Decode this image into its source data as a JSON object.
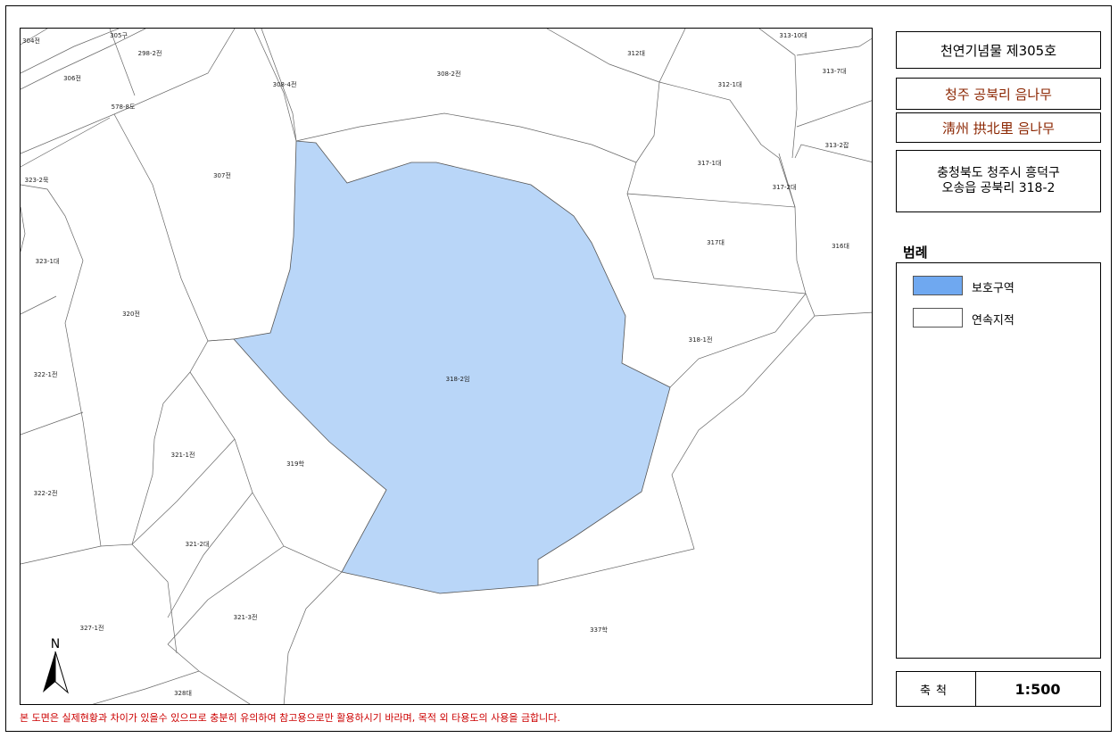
{
  "title_boxes": {
    "monument": "천연기념물 제305호",
    "name_korean": "청주 공북리 음나무",
    "name_hanja": "淸州 拱北里 음나무",
    "address_line1": "충청북도 청주시 흥덕구",
    "address_line2": "오송읍 공북리 318-2"
  },
  "legend": {
    "title": "범례",
    "items": [
      {
        "label": "보호구역",
        "color": "#6fa8f0"
      },
      {
        "label": "연속지적",
        "color": "#ffffff"
      }
    ]
  },
  "scale": {
    "label": "축척",
    "value": "1:500"
  },
  "north_label": "N",
  "disclaimer": "본 도면은 실제현황과 차이가 있을수 있으므로 충분히 유의하여 참고용으로만 활용하시기 바라며, 목적 외 타용도의 사용을 금합니다.",
  "colors": {
    "protected_area": "#b9d6f8",
    "parcel_line": "#555555",
    "brown_text": "#8b2500",
    "disclaimer": "#cc0000"
  },
  "parcels": [
    "304전",
    "305구",
    "298-2전",
    "306전",
    "578-8도",
    "308-4전",
    "308-2전",
    "312대",
    "313-10대",
    "312-1대",
    "313-7대",
    "313-2잡",
    "317-1대",
    "317-2대",
    "323-2묵",
    "307전",
    "317대",
    "316대",
    "323-1대",
    "320전",
    "318-1전",
    "322-1전",
    "318-2임",
    "321-1전",
    "319학",
    "322-2전",
    "321-2대",
    "321-3전",
    "327-1전",
    "337학",
    "328대"
  ]
}
